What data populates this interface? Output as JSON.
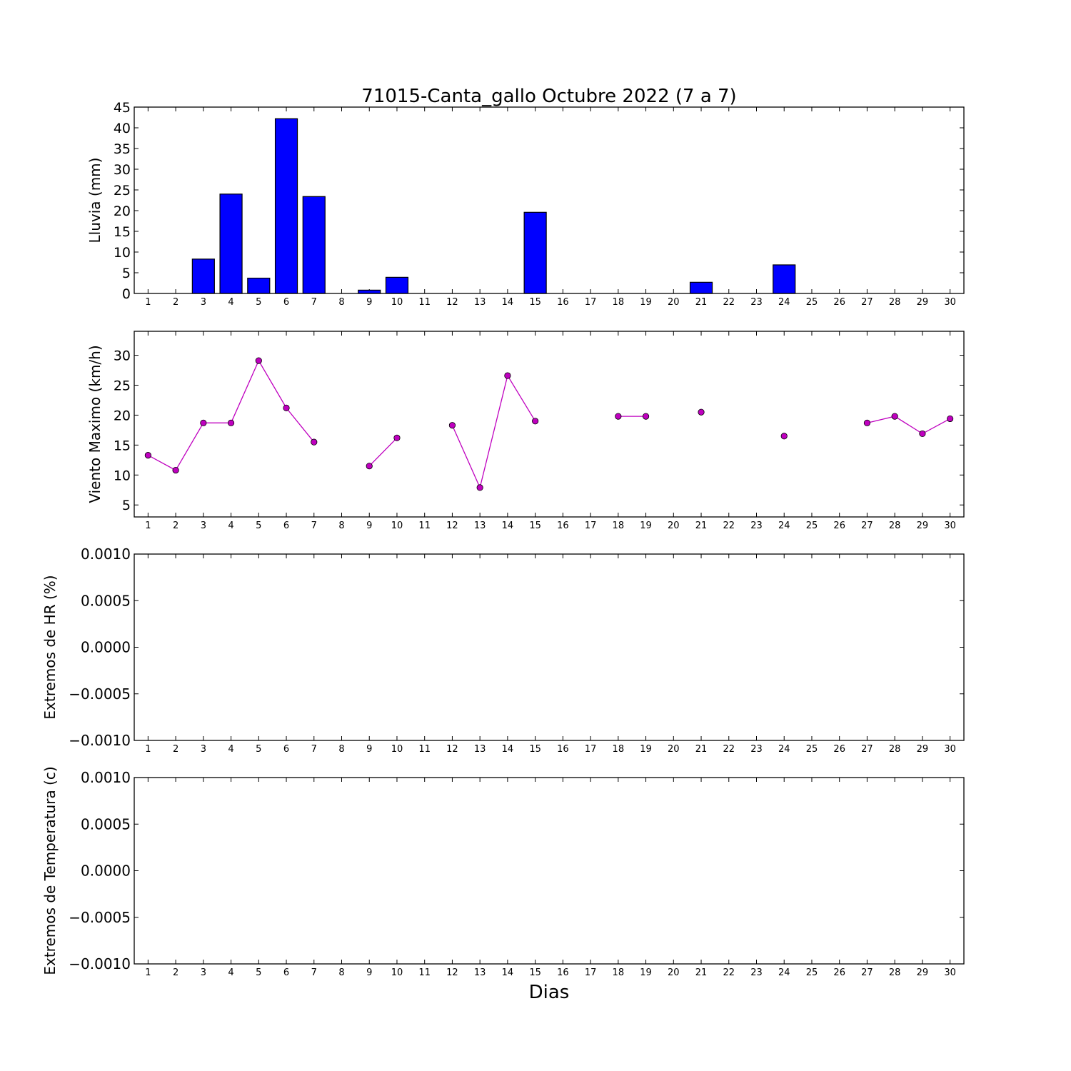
{
  "figure": {
    "title": "71015-Canta_gallo Octubre 2022  (7 a 7)",
    "xlabel": "Dias"
  },
  "chart_data": [
    {
      "type": "bar",
      "ylabel": "Lluvia (mm)",
      "x": [
        1,
        2,
        3,
        4,
        5,
        6,
        7,
        8,
        9,
        10,
        11,
        12,
        13,
        14,
        15,
        16,
        17,
        18,
        19,
        20,
        21,
        22,
        23,
        24,
        25,
        26,
        27,
        28,
        29,
        30
      ],
      "values": [
        0,
        0,
        8.3,
        24,
        3.7,
        42.2,
        23.4,
        null,
        0.8,
        3.9,
        null,
        0,
        0,
        0,
        19.6,
        null,
        null,
        0,
        0,
        0,
        2.7,
        null,
        null,
        6.9,
        null,
        0,
        0,
        0,
        0,
        0
      ],
      "xlim": [
        0.5,
        30.5
      ],
      "ylim": [
        0,
        45
      ],
      "yticks": [
        0,
        5,
        10,
        15,
        20,
        25,
        30,
        35,
        40,
        45
      ],
      "ytick_labels": [
        "0",
        "5",
        "10",
        "15",
        "20",
        "25",
        "30",
        "35",
        "40",
        "45"
      ],
      "color": "#0000ff"
    },
    {
      "type": "line",
      "ylabel": "Viento Maximo (km/h)",
      "x": [
        1,
        2,
        3,
        4,
        5,
        6,
        7,
        8,
        9,
        10,
        11,
        12,
        13,
        14,
        15,
        16,
        17,
        18,
        19,
        20,
        21,
        22,
        23,
        24,
        25,
        26,
        27,
        28,
        29,
        30
      ],
      "values": [
        13.3,
        10.8,
        18.7,
        18.7,
        29.1,
        21.2,
        15.5,
        null,
        11.5,
        16.2,
        null,
        18.3,
        7.9,
        26.6,
        19.0,
        null,
        null,
        19.8,
        19.8,
        null,
        20.5,
        null,
        null,
        16.5,
        null,
        null,
        18.7,
        19.8,
        16.9,
        19.4
      ],
      "xlim": [
        0.5,
        30.5
      ],
      "ylim": [
        3,
        34
      ],
      "yticks": [
        5,
        10,
        15,
        20,
        25,
        30
      ],
      "ytick_labels": [
        "5",
        "10",
        "15",
        "20",
        "25",
        "30"
      ],
      "color": "#bf00bf"
    },
    {
      "type": "line",
      "ylabel": "Extremos de HR (%)",
      "x": [],
      "values": [],
      "xlim": [
        0.5,
        30.5
      ],
      "ylim": [
        -0.001,
        0.001
      ],
      "yticks": [
        -0.001,
        -0.0005,
        0,
        0.0005,
        0.001
      ],
      "ytick_labels": [
        "−0.0010",
        "−0.0005",
        "0.0000",
        "0.0005",
        "0.0010"
      ]
    },
    {
      "type": "line",
      "ylabel": "Extremos de Temperatura (c)",
      "x": [],
      "values": [],
      "xlim": [
        0.5,
        30.5
      ],
      "ylim": [
        -0.001,
        0.001
      ],
      "yticks": [
        -0.001,
        -0.0005,
        0,
        0.0005,
        0.001
      ],
      "ytick_labels": [
        "−0.0010",
        "−0.0005",
        "0.0000",
        "0.0005",
        "0.0010"
      ]
    }
  ],
  "xtick_labels": [
    "1",
    "2",
    "3",
    "4",
    "5",
    "6",
    "7",
    "8",
    "9",
    "10",
    "11",
    "12",
    "13",
    "14",
    "15",
    "16",
    "17",
    "18",
    "19",
    "20",
    "21",
    "22",
    "23",
    "24",
    "25",
    "26",
    "27",
    "28",
    "29",
    "30"
  ]
}
